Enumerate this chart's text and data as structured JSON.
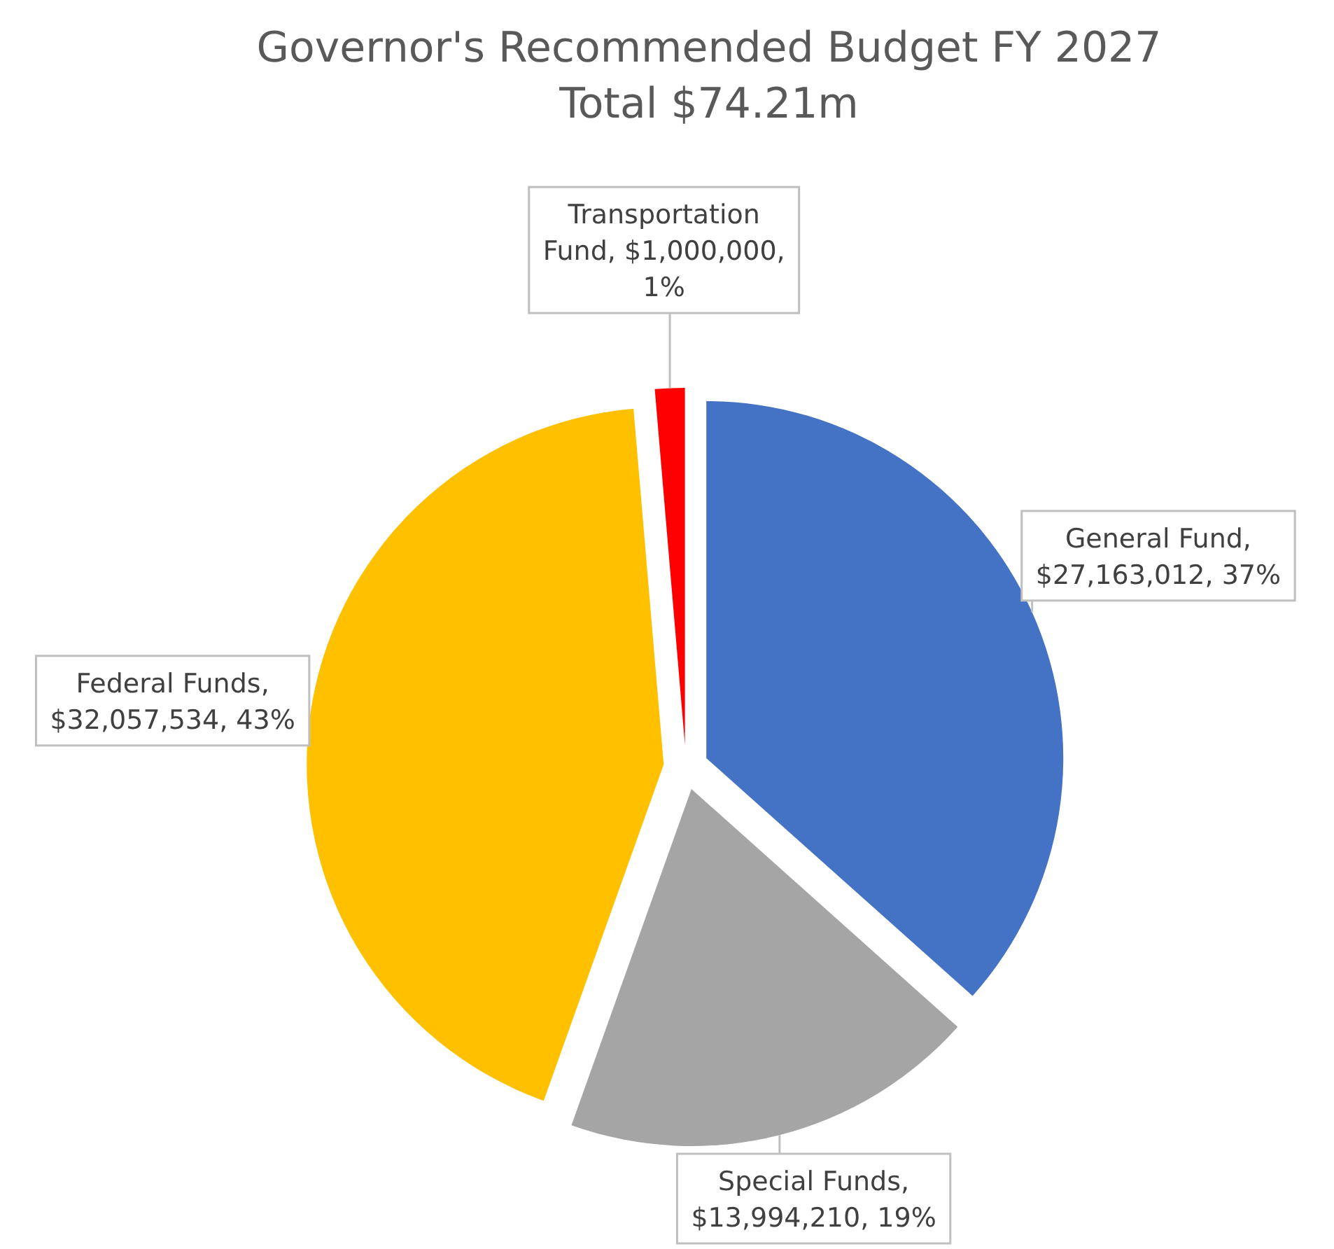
{
  "chart_data": {
    "type": "pie",
    "title": "Governor's  Recommended  Budget FY 2027",
    "subtitle": "Total $74.21m",
    "categories": [
      "General Fund",
      "Special Funds",
      "Federal Funds",
      "Transportation Fund"
    ],
    "values": [
      27163012,
      13994210,
      32057534,
      1000000
    ],
    "colors": [
      "#4472c4",
      "#a5a5a5",
      "#ffc000",
      "#ff0000"
    ],
    "value_labels": [
      ", $27,163,012, 37%",
      ", $13,994,210, 19%",
      ", $32,057,534, 43%",
      ", $1,000,000, 1%"
    ],
    "legend": false
  }
}
